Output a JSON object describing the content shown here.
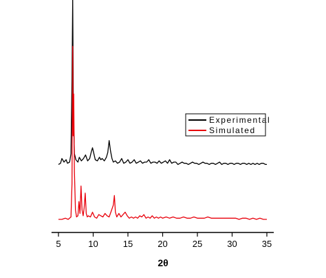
{
  "chart_data": {
    "type": "line",
    "xlabel": "2θ",
    "ylabel": "",
    "title": "",
    "xlim": [
      4,
      36
    ],
    "xticks": [
      5,
      10,
      15,
      20,
      25,
      30,
      35
    ],
    "yticks": [],
    "grid": false,
    "legend_position": "right",
    "series": [
      {
        "name": "Experimental",
        "color": "#000000",
        "baseline": 0.46,
        "x": [
          5.0,
          5.3,
          5.5,
          5.8,
          6.1,
          6.3,
          6.6,
          6.8,
          6.95,
          7.05,
          7.15,
          7.3,
          7.5,
          7.8,
          8.0,
          8.3,
          8.6,
          8.9,
          9.2,
          9.5,
          9.7,
          9.9,
          10.1,
          10.3,
          10.6,
          10.9,
          11.1,
          11.3,
          11.6,
          11.9,
          12.1,
          12.3,
          12.5,
          12.7,
          12.9,
          13.2,
          13.5,
          13.8,
          14.1,
          14.4,
          14.7,
          15.0,
          15.3,
          15.6,
          15.9,
          16.2,
          16.5,
          16.8,
          17.1,
          17.4,
          17.7,
          18.0,
          18.3,
          18.6,
          18.9,
          19.2,
          19.5,
          19.8,
          20.1,
          20.4,
          20.7,
          21.0,
          21.3,
          21.6,
          21.9,
          22.2,
          22.5,
          22.8,
          23.1,
          23.4,
          23.7,
          24.0,
          24.3,
          24.6,
          24.9,
          25.2,
          25.5,
          25.8,
          26.1,
          26.4,
          26.7,
          27.0,
          27.3,
          27.6,
          27.9,
          28.2,
          28.5,
          28.8,
          29.1,
          29.4,
          29.7,
          30.0,
          30.3,
          30.6,
          30.9,
          31.2,
          31.5,
          31.8,
          32.1,
          32.4,
          32.7,
          33.0,
          33.3,
          33.6,
          33.9,
          34.2,
          34.5,
          34.8,
          35.0
        ],
        "y": [
          0.46,
          0.47,
          0.51,
          0.48,
          0.5,
          0.47,
          0.48,
          0.55,
          1.18,
          1.85,
          0.9,
          0.55,
          0.5,
          0.48,
          0.52,
          0.49,
          0.51,
          0.54,
          0.49,
          0.51,
          0.56,
          0.6,
          0.55,
          0.5,
          0.49,
          0.52,
          0.5,
          0.51,
          0.49,
          0.52,
          0.56,
          0.66,
          0.57,
          0.51,
          0.48,
          0.49,
          0.47,
          0.48,
          0.51,
          0.47,
          0.48,
          0.5,
          0.47,
          0.48,
          0.5,
          0.47,
          0.48,
          0.49,
          0.47,
          0.48,
          0.48,
          0.5,
          0.47,
          0.48,
          0.48,
          0.47,
          0.49,
          0.47,
          0.48,
          0.49,
          0.47,
          0.5,
          0.47,
          0.48,
          0.48,
          0.46,
          0.47,
          0.48,
          0.47,
          0.47,
          0.46,
          0.47,
          0.48,
          0.47,
          0.47,
          0.46,
          0.47,
          0.48,
          0.47,
          0.47,
          0.46,
          0.47,
          0.47,
          0.46,
          0.47,
          0.48,
          0.46,
          0.47,
          0.47,
          0.46,
          0.47,
          0.47,
          0.46,
          0.47,
          0.47,
          0.46,
          0.47,
          0.47,
          0.46,
          0.47,
          0.46,
          0.47,
          0.46,
          0.47,
          0.46,
          0.47,
          0.47,
          0.46,
          0.46
        ]
      },
      {
        "name": "Simulated",
        "color": "#e8000b",
        "baseline": 0.0,
        "x": [
          5.0,
          5.5,
          6.0,
          6.4,
          6.8,
          6.95,
          7.05,
          7.12,
          7.2,
          7.3,
          7.45,
          7.6,
          7.8,
          7.95,
          8.1,
          8.25,
          8.4,
          8.55,
          8.7,
          8.85,
          9.0,
          9.15,
          9.3,
          9.6,
          9.9,
          10.2,
          10.5,
          10.8,
          11.1,
          11.4,
          11.7,
          12.0,
          12.3,
          12.6,
          12.9,
          13.05,
          13.2,
          13.4,
          13.7,
          14.0,
          14.3,
          14.6,
          14.9,
          15.2,
          15.5,
          15.8,
          16.1,
          16.4,
          16.7,
          17.0,
          17.3,
          17.6,
          17.9,
          18.2,
          18.5,
          18.8,
          19.1,
          19.4,
          19.7,
          20.0,
          20.5,
          21.0,
          21.5,
          22.0,
          22.5,
          23.0,
          23.5,
          24.0,
          24.5,
          25.0,
          25.5,
          26.0,
          26.5,
          27.0,
          27.5,
          28.0,
          28.5,
          29.0,
          29.5,
          30.0,
          30.5,
          31.0,
          31.5,
          32.0,
          32.5,
          33.0,
          33.5,
          34.0,
          34.5,
          35.0
        ],
        "y": [
          0.0,
          0.0,
          0.01,
          0.0,
          0.02,
          0.3,
          1.45,
          0.7,
          1.05,
          0.4,
          0.08,
          0.02,
          0.03,
          0.15,
          0.05,
          0.28,
          0.08,
          0.03,
          0.1,
          0.22,
          0.05,
          0.02,
          0.03,
          0.02,
          0.06,
          0.02,
          0.01,
          0.04,
          0.03,
          0.02,
          0.05,
          0.03,
          0.02,
          0.07,
          0.12,
          0.2,
          0.06,
          0.02,
          0.05,
          0.02,
          0.04,
          0.06,
          0.03,
          0.01,
          0.02,
          0.01,
          0.02,
          0.01,
          0.03,
          0.02,
          0.04,
          0.01,
          0.02,
          0.01,
          0.03,
          0.01,
          0.02,
          0.01,
          0.02,
          0.01,
          0.02,
          0.01,
          0.02,
          0.01,
          0.01,
          0.02,
          0.01,
          0.01,
          0.02,
          0.01,
          0.01,
          0.01,
          0.02,
          0.01,
          0.01,
          0.01,
          0.01,
          0.01,
          0.01,
          0.01,
          0.01,
          0.0,
          0.01,
          0.01,
          0.0,
          0.01,
          0.0,
          0.01,
          0.0,
          0.0
        ]
      }
    ]
  }
}
